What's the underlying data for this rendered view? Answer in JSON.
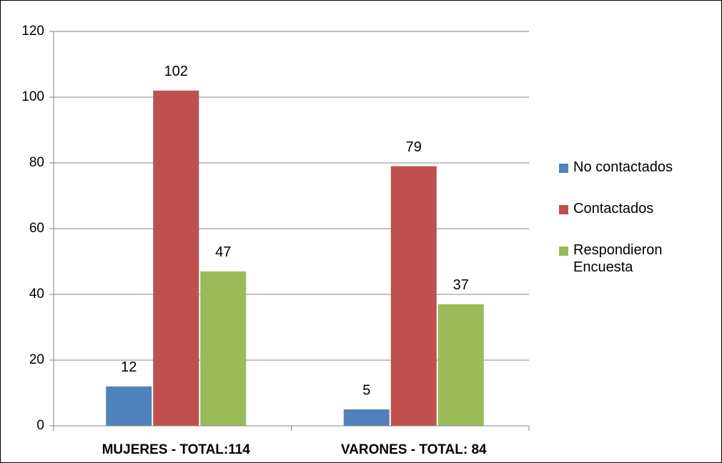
{
  "chart_data": {
    "type": "bar",
    "categories": [
      "MUJERES - TOTAL:114",
      "VARONES - TOTAL: 84"
    ],
    "series": [
      {
        "name": "No contactados",
        "color": "#4f81bd",
        "values": [
          12,
          5
        ]
      },
      {
        "name": "Contactados",
        "color": "#c0504d",
        "values": [
          102,
          79
        ]
      },
      {
        "name": "Respondieron Encuesta",
        "color": "#9bbb59",
        "values": [
          47,
          37
        ]
      }
    ],
    "ylim": [
      0,
      120
    ],
    "yticks": [
      0,
      20,
      40,
      60,
      80,
      100,
      120
    ],
    "grid": true,
    "legend": "right"
  }
}
